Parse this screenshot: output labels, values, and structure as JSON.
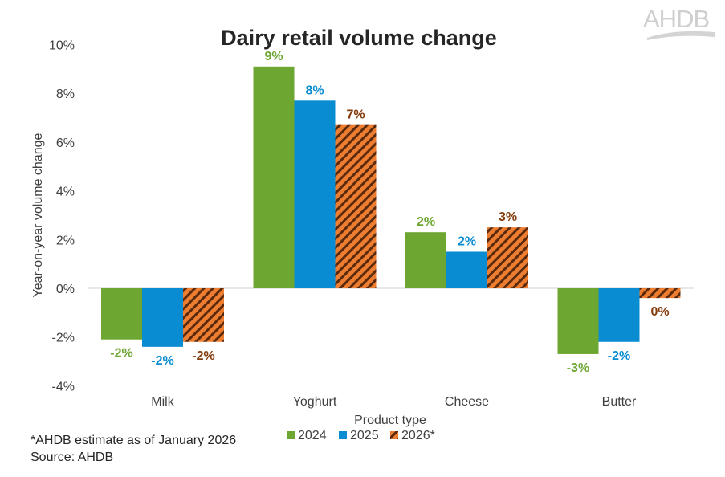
{
  "logo": {
    "text": "AHDB",
    "color": "#cfcfcf"
  },
  "footnote": "*AHDB estimate as of January 2026",
  "source": "Source: AHDB",
  "colors": {
    "2024": "#6EA632",
    "2025": "#0A8CD2",
    "2026_fill": "#ED7D31",
    "2026_hatch": "#5B2A0C",
    "label_2026": "#843C0C"
  },
  "chart_data": {
    "type": "bar",
    "title": "Dairy retail volume change",
    "xlabel": "Product type",
    "ylabel": "Year-on-year volume change",
    "categories": [
      "Milk",
      "Yoghurt",
      "Cheese",
      "Butter"
    ],
    "series": [
      {
        "name": "2024",
        "values": [
          -2.1,
          9.1,
          2.3,
          -2.7
        ],
        "labels": [
          "-2%",
          "9%",
          "2%",
          "-3%"
        ],
        "pattern": "solid"
      },
      {
        "name": "2025",
        "values": [
          -2.4,
          7.7,
          1.5,
          -2.2
        ],
        "labels": [
          "-2%",
          "8%",
          "2%",
          "-2%"
        ],
        "pattern": "solid"
      },
      {
        "name": "2026*",
        "values": [
          -2.2,
          6.7,
          2.5,
          -0.4
        ],
        "labels": [
          "-2%",
          "7%",
          "3%",
          "0%"
        ],
        "pattern": "diagonal-hatch"
      }
    ],
    "ylim": [
      -4,
      10
    ],
    "yticks": [
      10,
      8,
      6,
      4,
      2,
      0,
      -2,
      -4
    ],
    "ytick_labels": [
      "10%",
      "8%",
      "6%",
      "4%",
      "2%",
      "0%",
      "-2%",
      "-4%"
    ],
    "grid": false,
    "legend_position": "bottom-center"
  }
}
